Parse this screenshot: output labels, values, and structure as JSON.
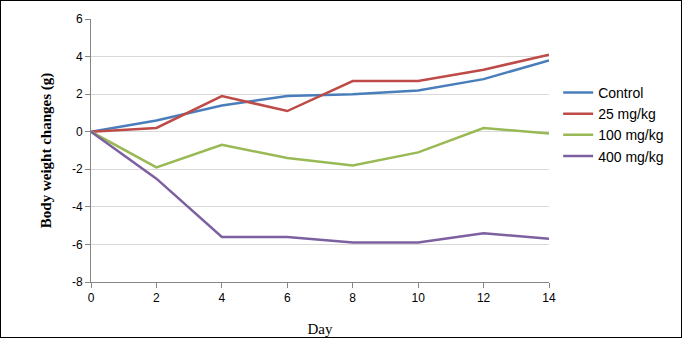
{
  "chart_data": {
    "type": "line",
    "x_label": "Day",
    "y_label": "Body weight changes (g)",
    "x": [
      0,
      2,
      4,
      6,
      8,
      10,
      12,
      14
    ],
    "xlim": [
      0,
      14
    ],
    "xticks": [
      0,
      2,
      4,
      6,
      8,
      10,
      12,
      14
    ],
    "ylim": [
      -8,
      6
    ],
    "yticks": [
      -8,
      -6,
      -4,
      -2,
      0,
      2,
      4,
      6
    ],
    "grid": true,
    "legend": "right",
    "series": [
      {
        "name": "Control",
        "color": "#4a7ebb",
        "values": [
          0,
          0.6,
          1.4,
          1.9,
          2.0,
          2.2,
          2.8,
          3.8
        ]
      },
      {
        "name": "25 mg/kg",
        "color": "#be4b48",
        "values": [
          0,
          0.2,
          1.9,
          1.1,
          2.7,
          2.7,
          3.3,
          4.1
        ]
      },
      {
        "name": "100 mg/kg",
        "color": "#98b954",
        "values": [
          0,
          -1.9,
          -0.7,
          -1.4,
          -1.8,
          -1.1,
          0.2,
          -0.1
        ]
      },
      {
        "name": "400 mg/kg",
        "color": "#7d60a0",
        "values": [
          0,
          -2.5,
          -5.6,
          -5.6,
          -5.9,
          -5.9,
          -5.4,
          -5.7
        ]
      }
    ]
  }
}
